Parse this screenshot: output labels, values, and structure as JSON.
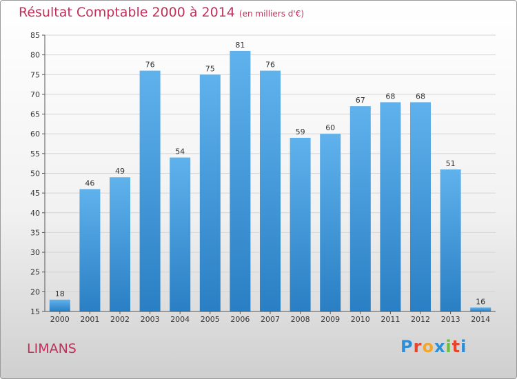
{
  "header": {
    "title": "Résultat Comptable 2000 à 2014",
    "unit": "(en milliers d'€)"
  },
  "footer": {
    "town": "LIMANS",
    "brand": "Proxiti",
    "brand_colors": [
      "#2a8fd8",
      "#e8452c",
      "#f4a62a",
      "#2a8fd8",
      "#6cbf3a",
      "#e8452c",
      "#2a8fd8"
    ]
  },
  "chart_data": {
    "type": "bar",
    "title": "Résultat Comptable 2000 à 2014",
    "subtitle": "(en milliers d'€)",
    "categories": [
      "2000",
      "2001",
      "2002",
      "2003",
      "2004",
      "2005",
      "2006",
      "2007",
      "2008",
      "2009",
      "2010",
      "2011",
      "2012",
      "2013",
      "2014"
    ],
    "values": [
      18,
      46,
      49,
      76,
      54,
      75,
      81,
      76,
      59,
      60,
      67,
      68,
      68,
      51,
      16
    ],
    "ylim": [
      15,
      85
    ],
    "yticks": [
      15,
      20,
      25,
      30,
      35,
      40,
      45,
      50,
      55,
      60,
      65,
      70,
      75,
      80,
      85
    ],
    "grid": true,
    "bar_color": "#3f98dc"
  }
}
